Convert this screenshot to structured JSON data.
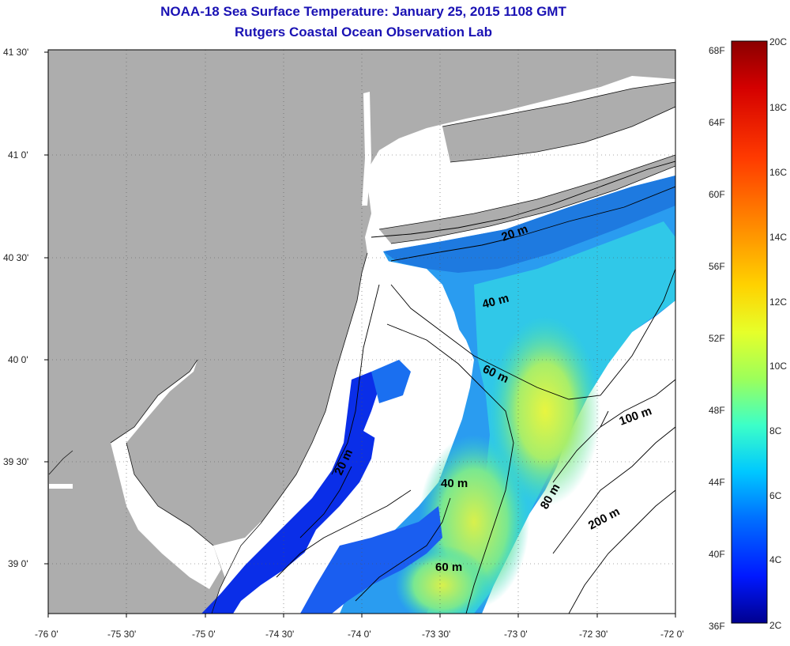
{
  "title": {
    "line1": "NOAA-18 Sea Surface Temperature:  January 25, 2015 1108 GMT",
    "line2": "Rutgers Coastal Ocean Observation Lab"
  },
  "axes": {
    "lat_labels": [
      "41 30'",
      "41 0'",
      "40 30'",
      "40 0'",
      "39 30'",
      "39 0'"
    ],
    "lon_labels": [
      "-76 0'",
      "-75 30'",
      "-75 0'",
      "-74 30'",
      "-74 0'",
      "-73 30'",
      "-73 0'",
      "-72 30'",
      "-72 0'"
    ]
  },
  "contour_labels": [
    "20 m",
    "40 m",
    "60 m",
    "100 m",
    "20 m",
    "40 m",
    "80 m",
    "200 m",
    "60 m"
  ],
  "colorbar": {
    "fahrenheit": [
      "68F",
      "64F",
      "60F",
      "56F",
      "52F",
      "48F",
      "44F",
      "40F",
      "36F"
    ],
    "celsius": [
      "20C",
      "18C",
      "16C",
      "14C",
      "12C",
      "10C",
      "8C",
      "6C",
      "4C",
      "2C"
    ],
    "colors": [
      "#8a0000",
      "#d40000",
      "#ff3a00",
      "#ff8c00",
      "#ffd200",
      "#e6ff2a",
      "#9dff5a",
      "#3cffc8",
      "#00c8ff",
      "#0070ff",
      "#0018ff",
      "#00008f"
    ]
  },
  "colors": {
    "land": "#adadad",
    "no_data": "#ffffff",
    "title": "#1a12b4"
  }
}
